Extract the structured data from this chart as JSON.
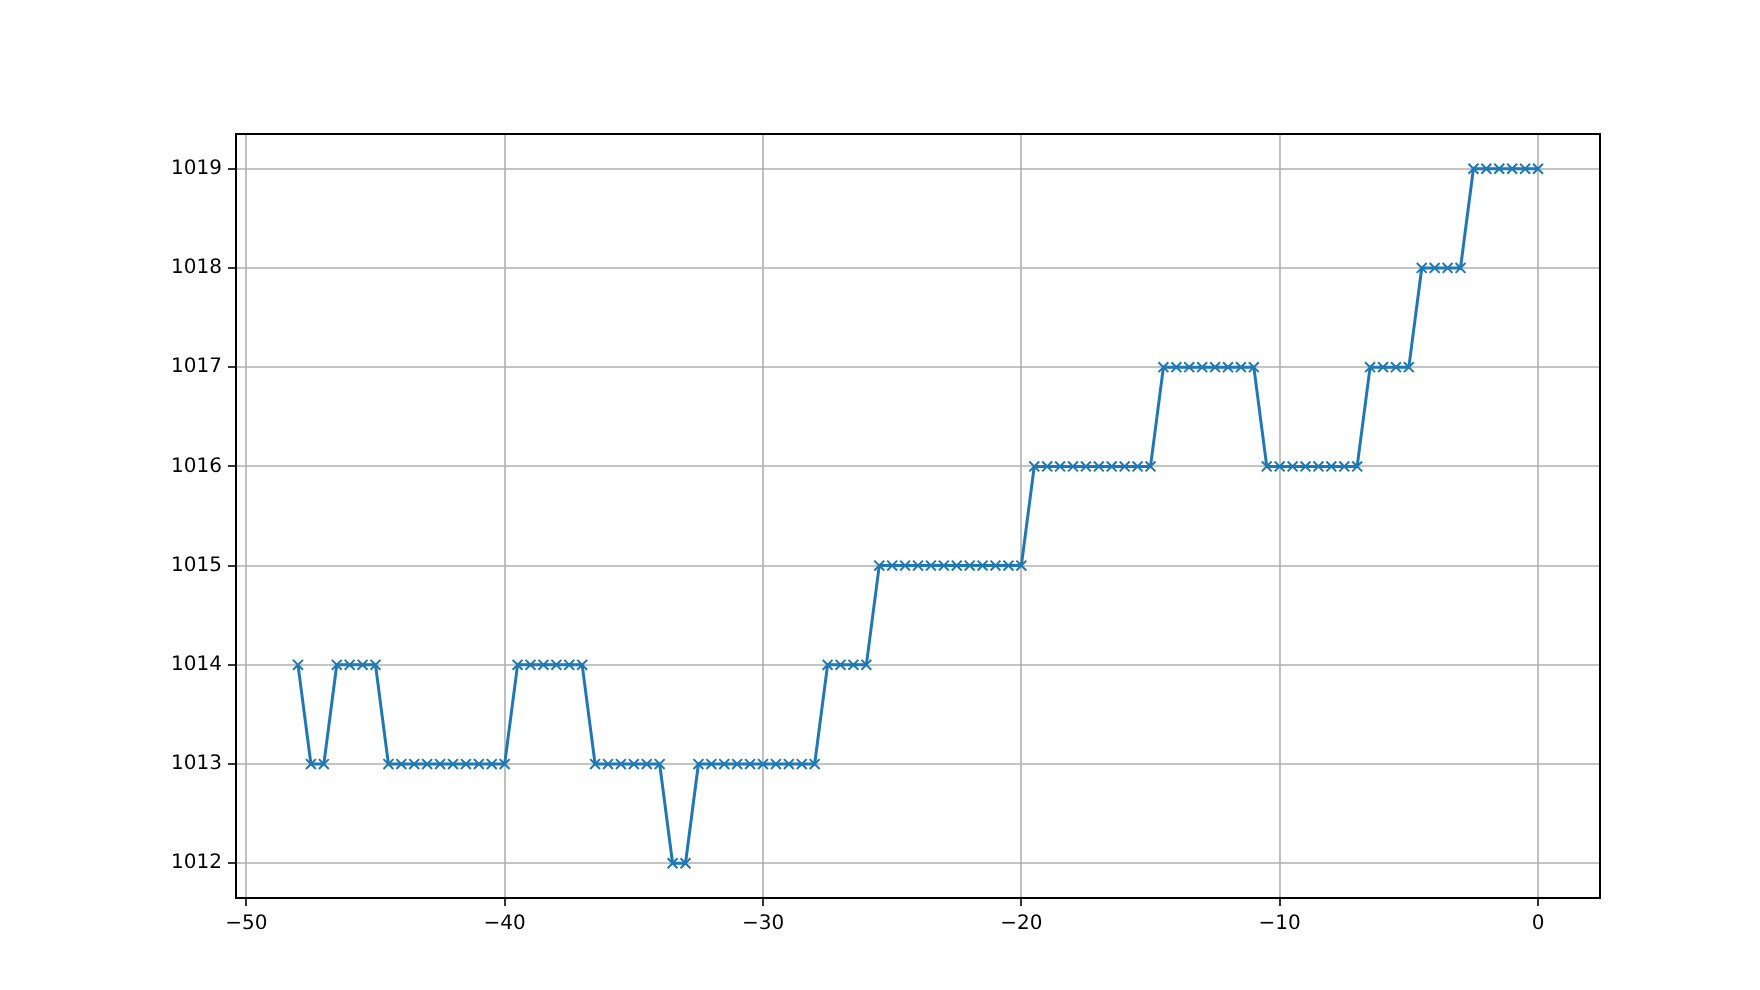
{
  "chart_data": {
    "type": "line",
    "x": [
      -48,
      -47.5,
      -47,
      -46.5,
      -46,
      -45.5,
      -45,
      -44.5,
      -44,
      -43.5,
      -43,
      -42.5,
      -42,
      -41.5,
      -41,
      -40.5,
      -40,
      -39.5,
      -39,
      -38.5,
      -38,
      -37.5,
      -37,
      -36.5,
      -36,
      -35.5,
      -35,
      -34.5,
      -34,
      -33.5,
      -33,
      -32.5,
      -32,
      -31.5,
      -31,
      -30.5,
      -30,
      -29.5,
      -29,
      -28.5,
      -28,
      -27.5,
      -27,
      -26.5,
      -26,
      -25.5,
      -25,
      -24.5,
      -24,
      -23.5,
      -23,
      -22.5,
      -22,
      -21.5,
      -21,
      -20.5,
      -20,
      -19.5,
      -19,
      -18.5,
      -18,
      -17.5,
      -17,
      -16.5,
      -16,
      -15.5,
      -15,
      -14.5,
      -14,
      -13.5,
      -13,
      -12.5,
      -12,
      -11.5,
      -11,
      -10.5,
      -10,
      -9.5,
      -9,
      -8.5,
      -8,
      -7.5,
      -7,
      -6.5,
      -6,
      -5.5,
      -5,
      -4.5,
      -4,
      -3.5,
      -3,
      -2.5,
      -2,
      -1.5,
      -1,
      -0.5,
      0
    ],
    "series": [
      {
        "color": "#1f77b4",
        "values": [
          1014,
          1013,
          1013,
          1014,
          1014,
          1014,
          1014,
          1013,
          1013,
          1013,
          1013,
          1013,
          1013,
          1013,
          1013,
          1013,
          1013,
          1014,
          1014,
          1014,
          1014,
          1014,
          1014,
          1013,
          1013,
          1013,
          1013,
          1013,
          1013,
          1012,
          1012,
          1013,
          1013,
          1013,
          1013,
          1013,
          1013,
          1013,
          1013,
          1013,
          1013,
          1014,
          1014,
          1014,
          1014,
          1015,
          1015,
          1015,
          1015,
          1015,
          1015,
          1015,
          1015,
          1015,
          1015,
          1015,
          1015,
          1016,
          1016,
          1016,
          1016,
          1016,
          1016,
          1016,
          1016,
          1016,
          1016,
          1017,
          1017,
          1017,
          1017,
          1017,
          1017,
          1017,
          1017,
          1016,
          1016,
          1016,
          1016,
          1016,
          1016,
          1016,
          1016,
          1017,
          1017,
          1017,
          1017,
          1018,
          1018,
          1018,
          1018,
          1019,
          1019,
          1019,
          1019,
          1019,
          1019
        ]
      }
    ],
    "xlim": [
      -50.4,
      2.4
    ],
    "xticks": [
      -50,
      -40,
      -30,
      -20,
      -10,
      0
    ],
    "ylim": [
      1011.65,
      1019.35
    ],
    "yticks": [
      1012,
      1013,
      1014,
      1015,
      1016,
      1017,
      1018,
      1019
    ],
    "grid": true,
    "marker": "cross",
    "line_style": "solid"
  }
}
